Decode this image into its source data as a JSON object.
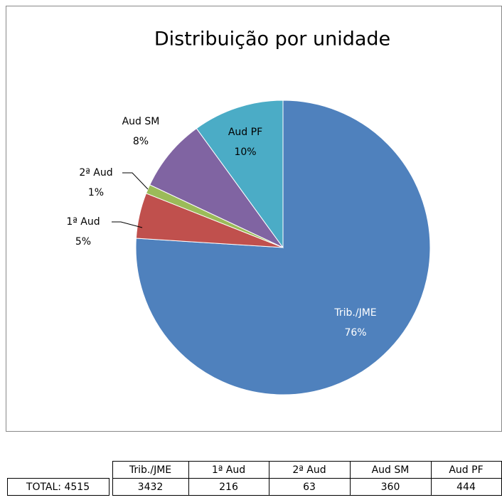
{
  "chart_data": {
    "type": "pie",
    "title": "Distribuição por unidade",
    "categories": [
      "Trib./JME",
      "1ª Aud",
      "2ª Aud",
      "Aud SM",
      "Aud PF"
    ],
    "values": [
      76,
      5,
      1,
      8,
      10
    ],
    "value_labels": [
      "76%",
      "5%",
      "1%",
      "8%",
      "10%"
    ],
    "colors": [
      "#4f81bd",
      "#c0504d",
      "#9bbb59",
      "#8064a2",
      "#4bacc6"
    ]
  },
  "table": {
    "header": [
      "Trib./JME",
      "1ª Aud",
      "2ª Aud",
      "Aud SM",
      "Aud PF"
    ],
    "rows": [
      [
        "TOTAL: 4515",
        "3432",
        "216",
        "63",
        "360",
        "444"
      ]
    ]
  }
}
